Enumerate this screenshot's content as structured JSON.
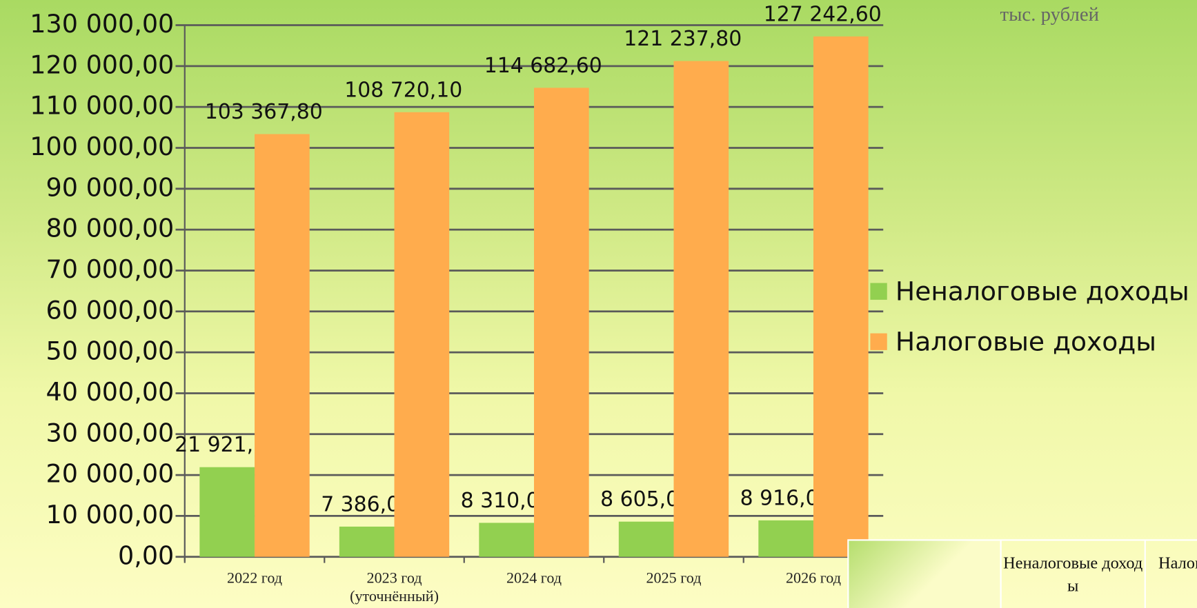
{
  "chart_data": {
    "type": "bar",
    "unit_note": "тыс. рублей",
    "categories": [
      "2022 год",
      "2023 год (уточнённый)",
      "2024 год",
      "2025 год",
      "2026 год"
    ],
    "series": [
      {
        "name": "Неналоговые доходы",
        "color": "#92d050",
        "values": [
          21921.1,
          7386,
          8310,
          8605,
          8916
        ],
        "value_labels": [
          "21 921,10",
          "7 386,00",
          "8 310,00",
          "8 605,00",
          "8 916,00"
        ]
      },
      {
        "name": "Налоговые доходы",
        "color": "#ffac4d",
        "values": [
          103367.8,
          108720.1,
          114682.6,
          121237.8,
          127242.6
        ],
        "value_labels": [
          "103 367,80",
          "108 720,10",
          "114 682,60",
          "121 237,80",
          "127 242,60"
        ]
      }
    ],
    "ylim": [
      0,
      130000
    ],
    "yticks": [
      {
        "value": 0,
        "label": "0,00"
      },
      {
        "value": 10000,
        "label": "10 000,00"
      },
      {
        "value": 20000,
        "label": "20 000,00"
      },
      {
        "value": 30000,
        "label": "30 000,00"
      },
      {
        "value": 40000,
        "label": "40 000,00"
      },
      {
        "value": 50000,
        "label": "50 000,00"
      },
      {
        "value": 60000,
        "label": "60 000,00"
      },
      {
        "value": 70000,
        "label": "70 000,00"
      },
      {
        "value": 80000,
        "label": "80 000,00"
      },
      {
        "value": 90000,
        "label": "90 000,00"
      },
      {
        "value": 100000,
        "label": "100 000,00"
      },
      {
        "value": 110000,
        "label": "110 000,00"
      },
      {
        "value": 120000,
        "label": "120 000,00"
      },
      {
        "value": 130000,
        "label": "130 000,00"
      }
    ],
    "grid": true,
    "legend": "right"
  },
  "table": {
    "headers": [
      "Неналоговые доходы",
      "Налоговые доходы"
    ]
  }
}
